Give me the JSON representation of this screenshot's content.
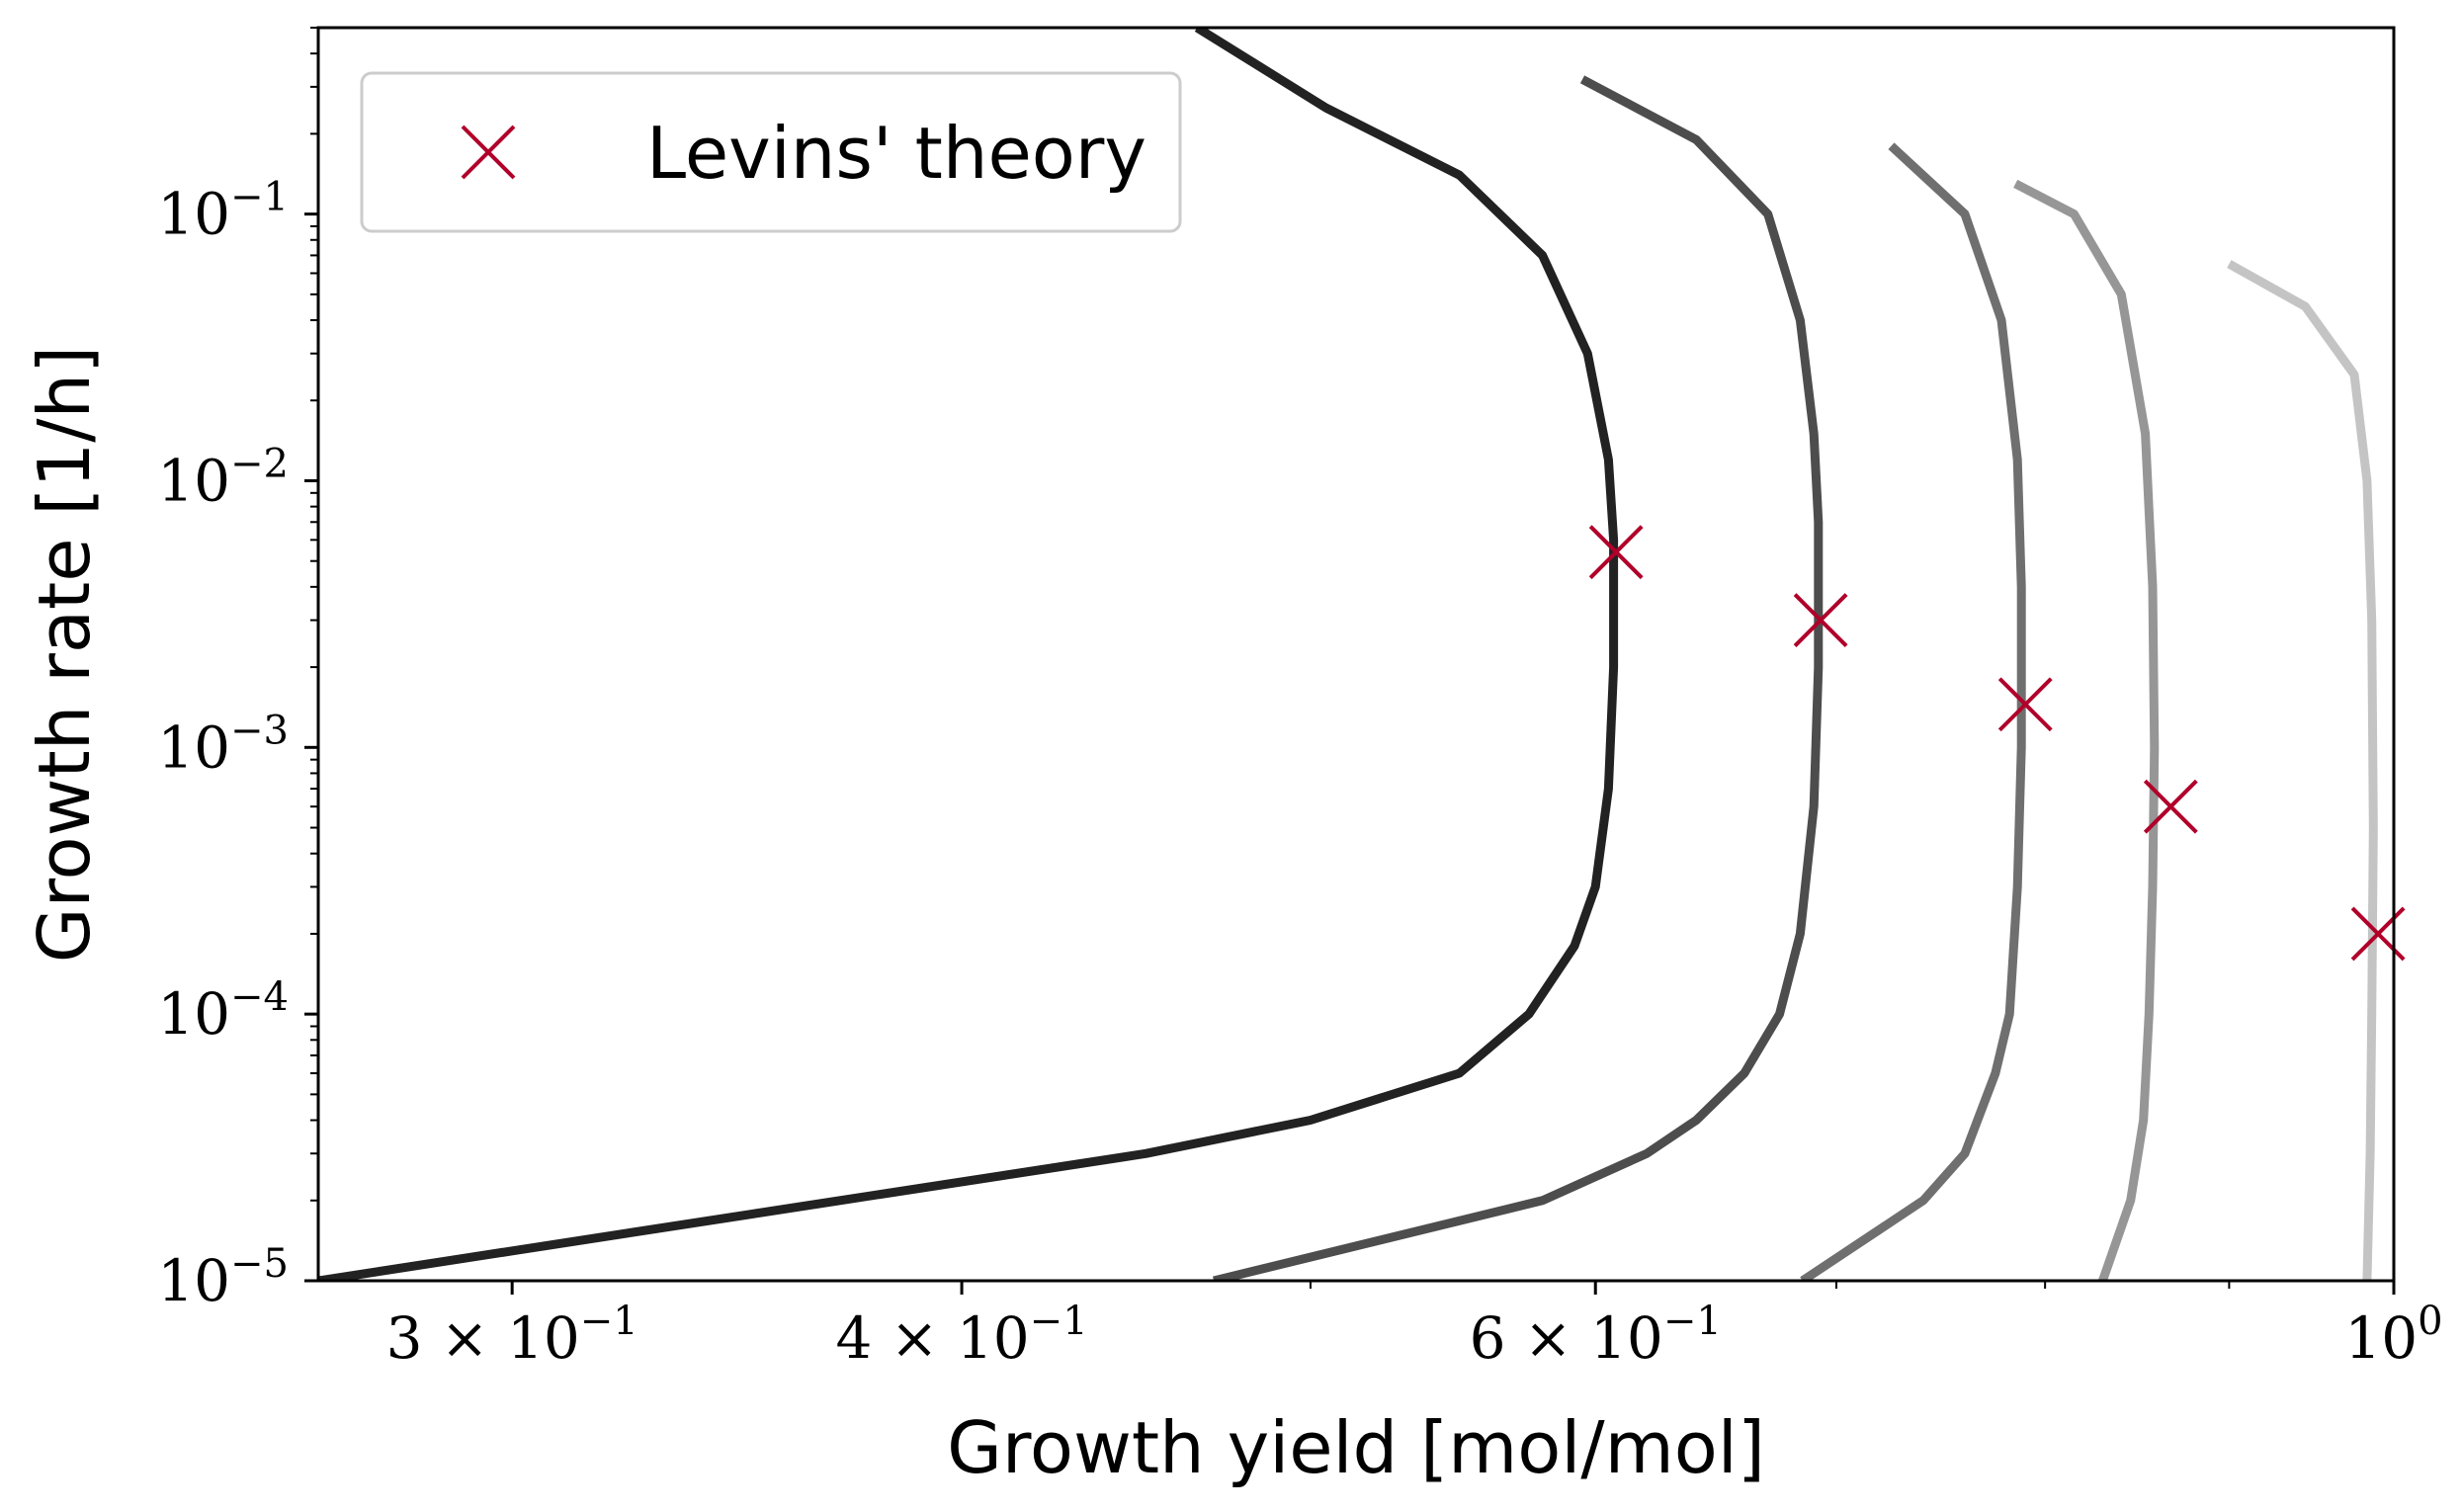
{
  "chart_data": {
    "type": "line",
    "title": "",
    "xlabel": "Growth yield [mol/mol]",
    "ylabel": "Growth rate [1/h]",
    "xscale": "log",
    "yscale": "log",
    "xlim": [
      0.265,
      1.0
    ],
    "ylim": [
      1e-05,
      0.5
    ],
    "grid": false,
    "legend_location": "upper left",
    "x_ticks": [
      {
        "value": 0.3,
        "base": "3 × 10",
        "exp": "−1"
      },
      {
        "value": 0.4,
        "base": "4 × 10",
        "exp": "−1"
      },
      {
        "value": 0.6,
        "base": "6 × 10",
        "exp": "−1"
      },
      {
        "value": 1.0,
        "base": "10",
        "exp": "0"
      }
    ],
    "y_ticks": [
      {
        "value": 1e-05,
        "base": "10",
        "exp": "−5"
      },
      {
        "value": 0.0001,
        "base": "10",
        "exp": "−4"
      },
      {
        "value": 0.001,
        "base": "10",
        "exp": "−3"
      },
      {
        "value": 0.01,
        "base": "10",
        "exp": "−2"
      },
      {
        "value": 0.1,
        "base": "10",
        "exp": "−1"
      }
    ],
    "series": [
      {
        "color": "#222222",
        "points": [
          [
            0.265,
            1e-05
          ],
          [
            0.37,
            2e-05
          ],
          [
            0.45,
            3e-05
          ],
          [
            0.5,
            4e-05
          ],
          [
            0.55,
            6e-05
          ],
          [
            0.575,
            0.0001
          ],
          [
            0.592,
            0.00018
          ],
          [
            0.6,
            0.0003
          ],
          [
            0.605,
            0.0007
          ],
          [
            0.607,
            0.002
          ],
          [
            0.607,
            0.006
          ],
          [
            0.605,
            0.012
          ],
          [
            0.597,
            0.03
          ],
          [
            0.58,
            0.07
          ],
          [
            0.55,
            0.14
          ],
          [
            0.505,
            0.25
          ],
          [
            0.465,
            0.5
          ]
        ]
      },
      {
        "color": "#4d4d4d",
        "points": [
          [
            0.47,
            1e-05
          ],
          [
            0.58,
            2e-05
          ],
          [
            0.62,
            3e-05
          ],
          [
            0.64,
            4e-05
          ],
          [
            0.66,
            6e-05
          ],
          [
            0.675,
            0.0001
          ],
          [
            0.684,
            0.0002
          ],
          [
            0.69,
            0.0006
          ],
          [
            0.692,
            0.002
          ],
          [
            0.692,
            0.007
          ],
          [
            0.69,
            0.015
          ],
          [
            0.684,
            0.04
          ],
          [
            0.67,
            0.1
          ],
          [
            0.64,
            0.19
          ],
          [
            0.595,
            0.32
          ]
        ]
      },
      {
        "color": "#6f6f6f",
        "points": [
          [
            0.685,
            1e-05
          ],
          [
            0.74,
            2e-05
          ],
          [
            0.76,
            3e-05
          ],
          [
            0.775,
            6e-05
          ],
          [
            0.782,
            0.0001
          ],
          [
            0.786,
            0.0003
          ],
          [
            0.788,
            0.001
          ],
          [
            0.788,
            0.004
          ],
          [
            0.786,
            0.012
          ],
          [
            0.778,
            0.04
          ],
          [
            0.76,
            0.1
          ],
          [
            0.725,
            0.18
          ]
        ]
      },
      {
        "color": "#969696",
        "points": [
          [
            0.83,
            1e-05
          ],
          [
            0.845,
            2e-05
          ],
          [
            0.852,
            4e-05
          ],
          [
            0.855,
            0.0001
          ],
          [
            0.857,
            0.0003
          ],
          [
            0.858,
            0.001
          ],
          [
            0.857,
            0.004
          ],
          [
            0.853,
            0.015
          ],
          [
            0.84,
            0.05
          ],
          [
            0.815,
            0.1
          ],
          [
            0.785,
            0.13
          ]
        ]
      },
      {
        "color": "#c4c4c4",
        "points": [
          [
            0.983,
            1e-05
          ],
          [
            0.985,
            3e-05
          ],
          [
            0.986,
            0.0001
          ],
          [
            0.987,
            0.0005
          ],
          [
            0.986,
            0.003
          ],
          [
            0.983,
            0.01
          ],
          [
            0.975,
            0.025
          ],
          [
            0.945,
            0.045
          ],
          [
            0.9,
            0.065
          ]
        ]
      }
    ],
    "markers": {
      "name": "Levins' theory",
      "color": "#b0002a",
      "points": [
        [
          0.608,
          0.0054
        ],
        [
          0.693,
          0.003
        ],
        [
          0.79,
          0.00145
        ],
        [
          0.867,
          0.0006
        ],
        [
          0.99,
          0.0002
        ]
      ]
    }
  }
}
